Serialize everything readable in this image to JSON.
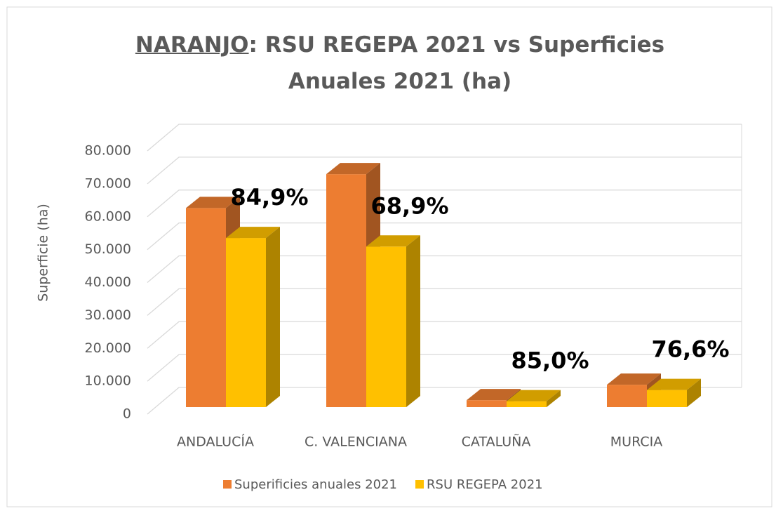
{
  "chart_data": {
    "type": "bar3d",
    "title_emphasis": "NARANJO",
    "title": ": RSU REGEPA 2021 vs Superficies Anuales 2021 (ha)",
    "y_label": "Superficie (ha)",
    "categories": [
      "ANDALUCÍA",
      "C. VALENCIANA",
      "CATALUÑA",
      "MURCIA"
    ],
    "series": [
      {
        "name": "Superificies anuales 2021",
        "color": "#ED7D31",
        "values": [
          60500,
          70800,
          2100,
          6800
        ]
      },
      {
        "name": "RSU REGEPA 2021",
        "color": "#FFC000",
        "values": [
          51400,
          48800,
          1800,
          5200
        ]
      }
    ],
    "ratios": {
      "values": [
        84.9,
        68.9,
        85.0,
        76.6
      ],
      "value_labels": [
        "84,9%",
        "68,9%",
        "85,0%",
        "76,6%"
      ]
    },
    "ylim": [
      0,
      80000
    ],
    "yticks": [
      0,
      {
        "value": 10000,
        "label": "10.000"
      },
      {
        "value": 20000,
        "label": "20.000"
      },
      {
        "value": 30000,
        "label": "30.000"
      },
      {
        "value": 40000,
        "label": "40.000"
      },
      {
        "value": 50000,
        "label": "50.000"
      },
      {
        "value": 60000,
        "label": "60.000"
      },
      {
        "value": 70000,
        "label": "70.000"
      },
      {
        "value": 80000,
        "label": "80.000"
      }
    ],
    "grid": true,
    "legend": "bottom"
  }
}
